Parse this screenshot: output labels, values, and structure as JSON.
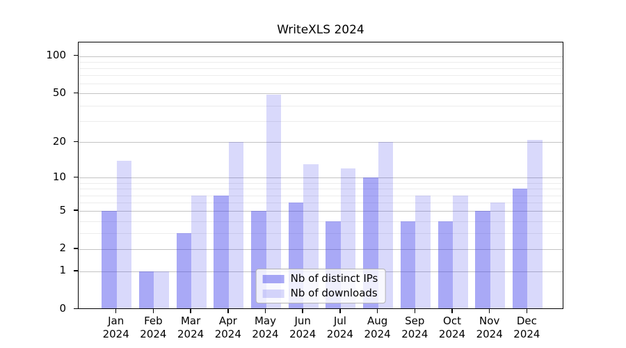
{
  "chart_data": {
    "type": "bar",
    "title": "WriteXLS 2024",
    "year_label": "2024",
    "categories": [
      "Jan",
      "Feb",
      "Mar",
      "Apr",
      "May",
      "Jun",
      "Jul",
      "Aug",
      "Sep",
      "Oct",
      "Nov",
      "Dec"
    ],
    "series": [
      {
        "name": "Nb of distinct IPs",
        "values": [
          5,
          1,
          3,
          7,
          5,
          6,
          4,
          10,
          4,
          4,
          5,
          8
        ],
        "color": "rgba(55,55,235,0.43)"
      },
      {
        "name": "Nb of downloads",
        "values": [
          14,
          1,
          7,
          20,
          49,
          13,
          12,
          20,
          7,
          7,
          6,
          21
        ],
        "color": "rgba(55,55,235,0.19)"
      }
    ],
    "y_axis": {
      "scale": "log1p",
      "tick_values": [
        100,
        50,
        20,
        10,
        5,
        2,
        1,
        0
      ],
      "tick_labels": [
        "100",
        "50",
        "20",
        "10",
        "5",
        "2",
        "1",
        "0"
      ],
      "minor_values": [
        3,
        4,
        6,
        7,
        8,
        9,
        30,
        40,
        60,
        70,
        80,
        90
      ]
    },
    "grid": true,
    "legend_position": "bottom-center",
    "colors": {
      "major_grid": "#c3c3c3",
      "minor_grid": "#ececec",
      "axis": "#000000",
      "legend_border": "#b3b3b3"
    }
  }
}
